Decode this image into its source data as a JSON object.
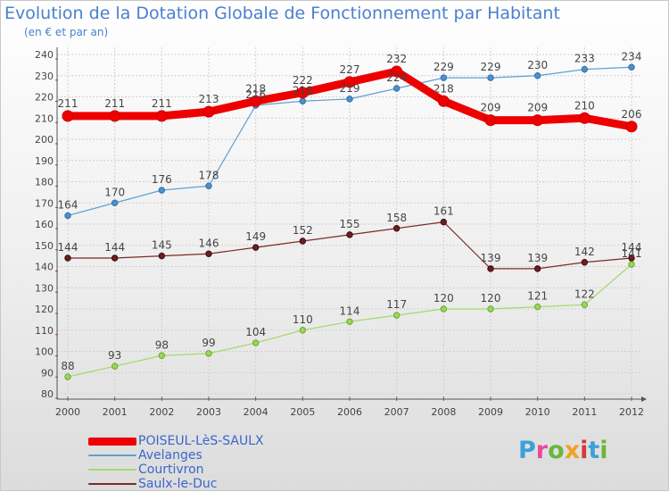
{
  "chart_data": {
    "type": "line",
    "title": "Evolution de la Dotation Globale de Fonctionnement par Habitant",
    "subtitle": "(en € et par an)",
    "x": [
      "2000",
      "2001",
      "2002",
      "2003",
      "2004",
      "2005",
      "2006",
      "2007",
      "2008",
      "2009",
      "2010",
      "2011",
      "2012"
    ],
    "ylim": [
      80,
      240
    ],
    "yticks": [
      80,
      90,
      100,
      110,
      120,
      130,
      140,
      150,
      160,
      170,
      180,
      190,
      200,
      210,
      220,
      230,
      240
    ],
    "grid": true,
    "legend_position": "bottom-left",
    "series": [
      {
        "name": "POISEUL-LèS-SAULX",
        "color": "#ee0000",
        "values": [
          211,
          211,
          211,
          213,
          218,
          222,
          227,
          232,
          218,
          209,
          209,
          210,
          206
        ]
      },
      {
        "name": "Avelanges",
        "color": "#5fa0d0",
        "values": [
          164,
          170,
          176,
          178,
          216,
          218,
          219,
          224,
          229,
          229,
          230,
          233,
          234
        ]
      },
      {
        "name": "Courtivron",
        "color": "#a6d86c",
        "values": [
          88,
          93,
          98,
          99,
          104,
          110,
          114,
          117,
          120,
          120,
          121,
          122,
          141
        ]
      },
      {
        "name": "Saulx-le-Duc",
        "color": "#7a2a2a",
        "values": [
          144,
          144,
          145,
          146,
          149,
          152,
          155,
          158,
          161,
          139,
          139,
          142,
          144
        ]
      }
    ]
  },
  "legend": {
    "items": [
      "POISEUL-LèS-SAULX",
      "Avelanges",
      "Courtivron",
      "Saulx-le-Duc"
    ]
  },
  "logo": {
    "text": "Proxiti",
    "parts": [
      "P",
      "r",
      "o",
      "x",
      "i",
      "t",
      "i"
    ]
  },
  "colors": {
    "title": "#4a7fd0",
    "legend_text": "#3a66cc",
    "axis": "#555555",
    "grid": "#cccccc"
  }
}
